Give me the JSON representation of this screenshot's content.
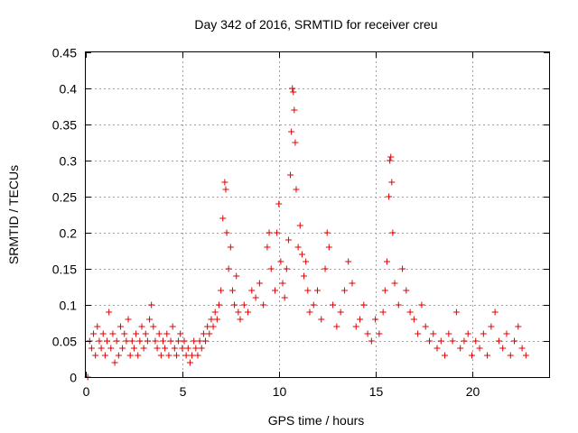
{
  "chart_data": {
    "type": "scatter",
    "title": "Day 342 of 2016, SRMTID for receiver creu",
    "xlabel": "GPS time / hours",
    "ylabel": "SRMTID / TECUs",
    "xlim": [
      0,
      24
    ],
    "ylim": [
      0,
      0.45
    ],
    "x_ticks": [
      0,
      5,
      10,
      15,
      20
    ],
    "x_tick_labels": [
      "0",
      "5",
      "10",
      "15",
      "20"
    ],
    "y_ticks": [
      0,
      0.05,
      0.1,
      0.15,
      0.2,
      0.25,
      0.3,
      0.35,
      0.4,
      0.45
    ],
    "y_tick_labels": [
      "0",
      "0.05",
      "0.1",
      "0.15",
      "0.2",
      "0.25",
      "0.3",
      "0.35",
      "0.4",
      "0.45"
    ],
    "grid": true,
    "marker": "plus",
    "series": [
      {
        "name": "SRMTID",
        "color": "#e00000",
        "points": [
          [
            0.1,
            0.0
          ],
          [
            0.2,
            0.05
          ],
          [
            0.3,
            0.04
          ],
          [
            0.4,
            0.06
          ],
          [
            0.5,
            0.03
          ],
          [
            0.6,
            0.07
          ],
          [
            0.7,
            0.05
          ],
          [
            0.8,
            0.04
          ],
          [
            0.9,
            0.06
          ],
          [
            1.0,
            0.03
          ],
          [
            1.1,
            0.05
          ],
          [
            1.2,
            0.09
          ],
          [
            1.3,
            0.04
          ],
          [
            1.4,
            0.06
          ],
          [
            1.5,
            0.02
          ],
          [
            1.6,
            0.05
          ],
          [
            1.7,
            0.03
          ],
          [
            1.8,
            0.07
          ],
          [
            1.9,
            0.04
          ],
          [
            2.0,
            0.06
          ],
          [
            2.1,
            0.05
          ],
          [
            2.2,
            0.08
          ],
          [
            2.3,
            0.03
          ],
          [
            2.4,
            0.05
          ],
          [
            2.5,
            0.04
          ],
          [
            2.6,
            0.06
          ],
          [
            2.7,
            0.03
          ],
          [
            2.8,
            0.05
          ],
          [
            2.9,
            0.07
          ],
          [
            3.0,
            0.04
          ],
          [
            3.1,
            0.06
          ],
          [
            3.2,
            0.05
          ],
          [
            3.3,
            0.08
          ],
          [
            3.4,
            0.1
          ],
          [
            3.5,
            0.07
          ],
          [
            3.6,
            0.05
          ],
          [
            3.7,
            0.04
          ],
          [
            3.8,
            0.06
          ],
          [
            3.9,
            0.03
          ],
          [
            4.0,
            0.05
          ],
          [
            4.1,
            0.04
          ],
          [
            4.2,
            0.06
          ],
          [
            4.3,
            0.03
          ],
          [
            4.4,
            0.05
          ],
          [
            4.5,
            0.07
          ],
          [
            4.6,
            0.04
          ],
          [
            4.7,
            0.03
          ],
          [
            4.8,
            0.05
          ],
          [
            4.9,
            0.06
          ],
          [
            5.0,
            0.04
          ],
          [
            5.1,
            0.05
          ],
          [
            5.2,
            0.03
          ],
          [
            5.3,
            0.04
          ],
          [
            5.4,
            0.02
          ],
          [
            5.5,
            0.03
          ],
          [
            5.6,
            0.05
          ],
          [
            5.7,
            0.04
          ],
          [
            5.8,
            0.03
          ],
          [
            5.9,
            0.05
          ],
          [
            6.0,
            0.04
          ],
          [
            6.1,
            0.06
          ],
          [
            6.2,
            0.05
          ],
          [
            6.3,
            0.07
          ],
          [
            6.4,
            0.06
          ],
          [
            6.5,
            0.08
          ],
          [
            6.6,
            0.07
          ],
          [
            6.7,
            0.09
          ],
          [
            6.8,
            0.08
          ],
          [
            6.9,
            0.1
          ],
          [
            7.0,
            0.12
          ],
          [
            7.1,
            0.22
          ],
          [
            7.2,
            0.27
          ],
          [
            7.25,
            0.26
          ],
          [
            7.3,
            0.2
          ],
          [
            7.4,
            0.15
          ],
          [
            7.5,
            0.18
          ],
          [
            7.6,
            0.12
          ],
          [
            7.7,
            0.1
          ],
          [
            7.8,
            0.14
          ],
          [
            7.9,
            0.09
          ],
          [
            8.0,
            0.08
          ],
          [
            8.2,
            0.1
          ],
          [
            8.4,
            0.09
          ],
          [
            8.6,
            0.12
          ],
          [
            8.8,
            0.11
          ],
          [
            9.0,
            0.13
          ],
          [
            9.2,
            0.1
          ],
          [
            9.4,
            0.18
          ],
          [
            9.5,
            0.2
          ],
          [
            9.6,
            0.15
          ],
          [
            9.8,
            0.12
          ],
          [
            9.9,
            0.2
          ],
          [
            10.0,
            0.24
          ],
          [
            10.1,
            0.16
          ],
          [
            10.2,
            0.13
          ],
          [
            10.3,
            0.11
          ],
          [
            10.4,
            0.15
          ],
          [
            10.5,
            0.19
          ],
          [
            10.6,
            0.28
          ],
          [
            10.65,
            0.34
          ],
          [
            10.7,
            0.4
          ],
          [
            10.75,
            0.395
          ],
          [
            10.8,
            0.37
          ],
          [
            10.85,
            0.325
          ],
          [
            10.9,
            0.26
          ],
          [
            11.0,
            0.18
          ],
          [
            11.1,
            0.21
          ],
          [
            11.2,
            0.17
          ],
          [
            11.3,
            0.14
          ],
          [
            11.4,
            0.16
          ],
          [
            11.5,
            0.12
          ],
          [
            11.6,
            0.09
          ],
          [
            11.8,
            0.1
          ],
          [
            12.0,
            0.12
          ],
          [
            12.2,
            0.08
          ],
          [
            12.4,
            0.15
          ],
          [
            12.5,
            0.2
          ],
          [
            12.6,
            0.18
          ],
          [
            12.8,
            0.1
          ],
          [
            13.0,
            0.07
          ],
          [
            13.2,
            0.09
          ],
          [
            13.4,
            0.12
          ],
          [
            13.6,
            0.16
          ],
          [
            13.8,
            0.13
          ],
          [
            14.0,
            0.07
          ],
          [
            14.2,
            0.08
          ],
          [
            14.4,
            0.1
          ],
          [
            14.6,
            0.06
          ],
          [
            14.8,
            0.05
          ],
          [
            15.0,
            0.08
          ],
          [
            15.2,
            0.06
          ],
          [
            15.4,
            0.09
          ],
          [
            15.5,
            0.12
          ],
          [
            15.6,
            0.16
          ],
          [
            15.7,
            0.25
          ],
          [
            15.75,
            0.3
          ],
          [
            15.8,
            0.305
          ],
          [
            15.85,
            0.27
          ],
          [
            15.9,
            0.2
          ],
          [
            16.0,
            0.13
          ],
          [
            16.2,
            0.1
          ],
          [
            16.4,
            0.15
          ],
          [
            16.6,
            0.12
          ],
          [
            16.8,
            0.09
          ],
          [
            17.0,
            0.08
          ],
          [
            17.2,
            0.06
          ],
          [
            17.4,
            0.1
          ],
          [
            17.6,
            0.07
          ],
          [
            17.8,
            0.05
          ],
          [
            18.0,
            0.06
          ],
          [
            18.2,
            0.04
          ],
          [
            18.4,
            0.05
          ],
          [
            18.6,
            0.03
          ],
          [
            18.8,
            0.06
          ],
          [
            19.0,
            0.05
          ],
          [
            19.2,
            0.09
          ],
          [
            19.4,
            0.04
          ],
          [
            19.6,
            0.05
          ],
          [
            19.8,
            0.06
          ],
          [
            20.0,
            0.03
          ],
          [
            20.2,
            0.05
          ],
          [
            20.4,
            0.04
          ],
          [
            20.6,
            0.06
          ],
          [
            20.8,
            0.03
          ],
          [
            21.0,
            0.07
          ],
          [
            21.2,
            0.09
          ],
          [
            21.4,
            0.05
          ],
          [
            21.6,
            0.04
          ],
          [
            21.8,
            0.06
          ],
          [
            22.0,
            0.03
          ],
          [
            22.2,
            0.05
          ],
          [
            22.4,
            0.07
          ],
          [
            22.6,
            0.04
          ],
          [
            22.8,
            0.03
          ]
        ]
      }
    ]
  }
}
